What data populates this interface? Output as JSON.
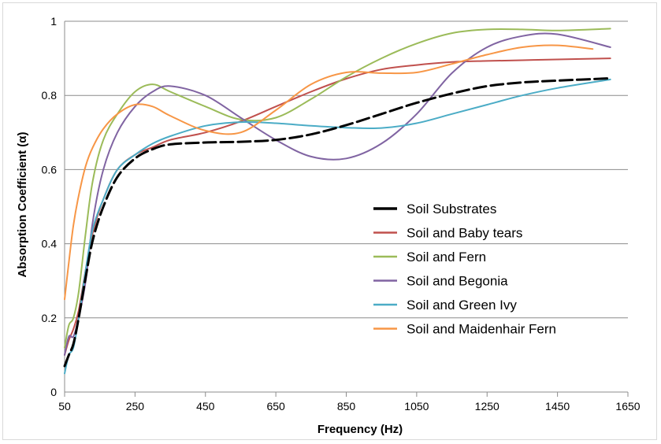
{
  "chart_data": {
    "type": "line",
    "title": "",
    "xlabel": "Frequency (Hz)",
    "ylabel": "Absorption Coefficient (α)",
    "xlim": [
      50,
      1650
    ],
    "ylim": [
      0,
      1
    ],
    "x_ticks": [
      50,
      250,
      450,
      650,
      850,
      1050,
      1250,
      1450,
      1650
    ],
    "y_ticks": [
      0,
      0.2,
      0.4,
      0.6,
      0.8,
      1
    ],
    "y_tick_labels": [
      "0",
      "0.2",
      "0.4",
      "0.6",
      "0.8",
      "1"
    ],
    "grid": "horizontal",
    "legend_position": "right-center",
    "series": [
      {
        "name": "Soil Substrates",
        "color": "#000000",
        "dash": "dashed",
        "points": [
          [
            50,
            0.07
          ],
          [
            62,
            0.1
          ],
          [
            75,
            0.13
          ],
          [
            90,
            0.2
          ],
          [
            110,
            0.31
          ],
          [
            130,
            0.41
          ],
          [
            160,
            0.5
          ],
          [
            200,
            0.58
          ],
          [
            250,
            0.63
          ],
          [
            300,
            0.655
          ],
          [
            350,
            0.668
          ],
          [
            450,
            0.673
          ],
          [
            550,
            0.675
          ],
          [
            650,
            0.68
          ],
          [
            750,
            0.695
          ],
          [
            850,
            0.72
          ],
          [
            950,
            0.75
          ],
          [
            1050,
            0.78
          ],
          [
            1150,
            0.805
          ],
          [
            1250,
            0.825
          ],
          [
            1350,
            0.835
          ],
          [
            1450,
            0.84
          ],
          [
            1600,
            0.846
          ]
        ]
      },
      {
        "name": "Soil and Baby tears",
        "color": "#c0504d",
        "dash": "solid",
        "points": [
          [
            50,
            0.1
          ],
          [
            62,
            0.14
          ],
          [
            75,
            0.17
          ],
          [
            90,
            0.22
          ],
          [
            110,
            0.33
          ],
          [
            130,
            0.43
          ],
          [
            160,
            0.52
          ],
          [
            200,
            0.6
          ],
          [
            250,
            0.64
          ],
          [
            300,
            0.66
          ],
          [
            350,
            0.68
          ],
          [
            450,
            0.7
          ],
          [
            550,
            0.73
          ],
          [
            650,
            0.77
          ],
          [
            750,
            0.81
          ],
          [
            850,
            0.845
          ],
          [
            950,
            0.87
          ],
          [
            1050,
            0.882
          ],
          [
            1150,
            0.89
          ],
          [
            1250,
            0.893
          ],
          [
            1350,
            0.895
          ],
          [
            1450,
            0.897
          ],
          [
            1600,
            0.9
          ]
        ]
      },
      {
        "name": "Soil and Fern",
        "color": "#9bbb59",
        "dash": "solid",
        "points": [
          [
            50,
            0.12
          ],
          [
            62,
            0.18
          ],
          [
            75,
            0.2
          ],
          [
            90,
            0.27
          ],
          [
            110,
            0.43
          ],
          [
            130,
            0.57
          ],
          [
            160,
            0.68
          ],
          [
            200,
            0.75
          ],
          [
            250,
            0.81
          ],
          [
            300,
            0.83
          ],
          [
            350,
            0.81
          ],
          [
            450,
            0.77
          ],
          [
            550,
            0.735
          ],
          [
            650,
            0.74
          ],
          [
            750,
            0.79
          ],
          [
            850,
            0.85
          ],
          [
            950,
            0.9
          ],
          [
            1050,
            0.94
          ],
          [
            1150,
            0.968
          ],
          [
            1250,
            0.978
          ],
          [
            1350,
            0.978
          ],
          [
            1450,
            0.975
          ],
          [
            1600,
            0.98
          ]
        ]
      },
      {
        "name": "Soil and Begonia",
        "color": "#8064a2",
        "dash": "solid",
        "points": [
          [
            50,
            0.1
          ],
          [
            62,
            0.15
          ],
          [
            75,
            0.15
          ],
          [
            90,
            0.2
          ],
          [
            110,
            0.3
          ],
          [
            130,
            0.46
          ],
          [
            160,
            0.6
          ],
          [
            200,
            0.7
          ],
          [
            250,
            0.77
          ],
          [
            300,
            0.81
          ],
          [
            350,
            0.825
          ],
          [
            450,
            0.8
          ],
          [
            550,
            0.74
          ],
          [
            650,
            0.68
          ],
          [
            750,
            0.635
          ],
          [
            850,
            0.63
          ],
          [
            950,
            0.67
          ],
          [
            1050,
            0.75
          ],
          [
            1150,
            0.86
          ],
          [
            1250,
            0.93
          ],
          [
            1350,
            0.96
          ],
          [
            1450,
            0.965
          ],
          [
            1600,
            0.93
          ]
        ]
      },
      {
        "name": "Soil and Green Ivy",
        "color": "#4bacc6",
        "dash": "solid",
        "points": [
          [
            50,
            0.05
          ],
          [
            62,
            0.1
          ],
          [
            75,
            0.12
          ],
          [
            90,
            0.2
          ],
          [
            110,
            0.33
          ],
          [
            130,
            0.44
          ],
          [
            160,
            0.52
          ],
          [
            200,
            0.6
          ],
          [
            250,
            0.64
          ],
          [
            300,
            0.67
          ],
          [
            350,
            0.69
          ],
          [
            450,
            0.718
          ],
          [
            550,
            0.728
          ],
          [
            650,
            0.725
          ],
          [
            750,
            0.718
          ],
          [
            850,
            0.713
          ],
          [
            950,
            0.712
          ],
          [
            1050,
            0.725
          ],
          [
            1150,
            0.75
          ],
          [
            1250,
            0.775
          ],
          [
            1350,
            0.8
          ],
          [
            1450,
            0.82
          ],
          [
            1600,
            0.843
          ]
        ]
      },
      {
        "name": "Soil and Maidenhair Fern",
        "color": "#f79646",
        "dash": "solid",
        "points": [
          [
            50,
            0.25
          ],
          [
            62,
            0.35
          ],
          [
            75,
            0.45
          ],
          [
            90,
            0.53
          ],
          [
            110,
            0.61
          ],
          [
            130,
            0.66
          ],
          [
            160,
            0.71
          ],
          [
            200,
            0.75
          ],
          [
            250,
            0.775
          ],
          [
            300,
            0.77
          ],
          [
            350,
            0.745
          ],
          [
            450,
            0.705
          ],
          [
            550,
            0.7
          ],
          [
            650,
            0.76
          ],
          [
            750,
            0.83
          ],
          [
            850,
            0.862
          ],
          [
            950,
            0.86
          ],
          [
            1050,
            0.862
          ],
          [
            1150,
            0.885
          ],
          [
            1250,
            0.91
          ],
          [
            1350,
            0.93
          ],
          [
            1450,
            0.935
          ],
          [
            1550,
            0.925
          ]
        ]
      }
    ]
  }
}
